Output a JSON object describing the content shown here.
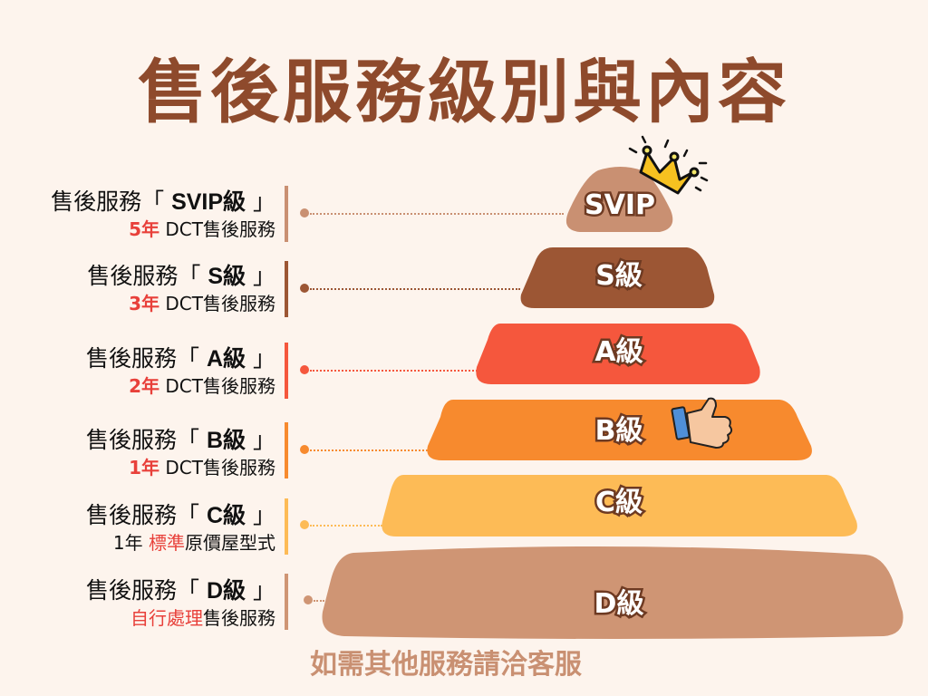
{
  "title": "售後服務級別與內容",
  "footer": "如需其他服務請洽客服",
  "levels": [
    {
      "prefix": "售後服務「 ",
      "grade": "SVIP級",
      "suffix": " 」",
      "highlight": "5年",
      "rest": " DCT售後服務",
      "pyramid_label": "SVIP",
      "color": "#c99072"
    },
    {
      "prefix": "售後服務「 ",
      "grade": "S級",
      "suffix": " 」",
      "highlight": "3年",
      "rest": " DCT售後服務",
      "pyramid_label": "S級",
      "color": "#9c5634"
    },
    {
      "prefix": "售後服務「 ",
      "grade": "A級",
      "suffix": " 」",
      "highlight": "2年",
      "rest": " DCT售後服務",
      "pyramid_label": "A級",
      "color": "#f5573d"
    },
    {
      "prefix": "售後服務「 ",
      "grade": "B級",
      "suffix": " 」",
      "highlight": "1年",
      "rest": " DCT售後服務",
      "pyramid_label": "B級",
      "color": "#f78a2e"
    },
    {
      "prefix": "售後服務「 ",
      "grade": "C級",
      "suffix": " 」",
      "lead": "1年 ",
      "highlight": "標準",
      "rest": "原價屋型式",
      "pyramid_label": "C級",
      "color": "#fdbb56"
    },
    {
      "prefix": "售後服務「 ",
      "grade": "D級",
      "suffix": " 」",
      "highlight": "自行處理",
      "rest": "售後服務",
      "pyramid_label": "D級",
      "color": "#cf9574"
    }
  ],
  "icons": {
    "crown": "crown-icon",
    "thumbs_up": "thumbs-up-icon"
  }
}
